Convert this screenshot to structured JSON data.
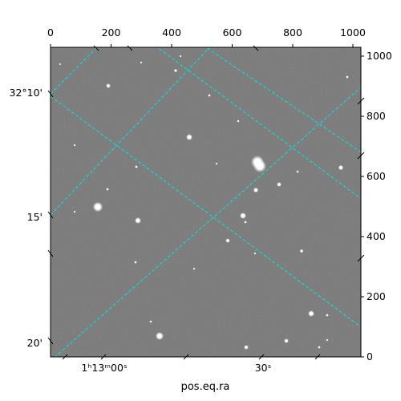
{
  "image": {
    "subject": "astronomical-sky-image",
    "colormap": "grayscale",
    "grid_color": "#00e5e5",
    "background_gray": "#787878"
  },
  "axes": {
    "top_pixel_ticks": [
      "0",
      "200",
      "400",
      "600",
      "800",
      "1000"
    ],
    "right_pixel_ticks": [
      "1000",
      "800",
      "600",
      "400",
      "200",
      "0"
    ],
    "left_dec_ticks": [
      "32°10'",
      "15'",
      "20'"
    ],
    "bottom_ra_ticks": [
      "1ʰ13ᵐ00ˢ",
      "30ˢ"
    ],
    "xlabel": "pos.eq.ra"
  }
}
